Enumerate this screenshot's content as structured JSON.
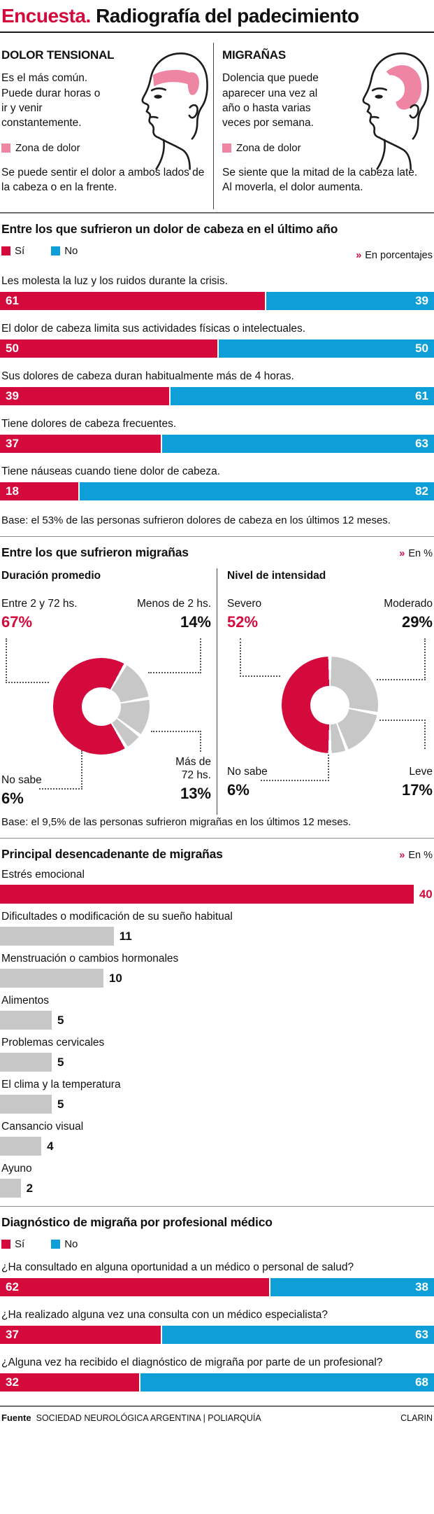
{
  "colors": {
    "red": "#d40a3c",
    "blue": "#0f9fd8",
    "pink": "#ee85a2",
    "gray": "#c7c7c7",
    "ink": "#111111"
  },
  "header": {
    "kicker": "Encuesta.",
    "title": "Radiografía del padecimiento"
  },
  "types": {
    "left": {
      "title": "DOLOR TENSIONAL",
      "desc": "Es el más común. Puede durar horas o ir y venir constantemente.",
      "zone_label": "Zona de dolor",
      "note": "Se puede sentir el dolor a ambos lados de la cabeza o en la frente."
    },
    "right": {
      "title": "MIGRAÑAS",
      "desc": "Dolencia que puede aparecer una vez al año o hasta varias veces por semana.",
      "zone_label": "Zona de dolor",
      "note": "Se siente que la mitad de la cabeza late. Al moverla, el dolor aumenta."
    }
  },
  "strings": {
    "unit_marker": "»"
  },
  "sections": {
    "headache": {
      "legend_yes": "Sí",
      "legend_no": "No",
      "unit_text": "En porcentajes",
      "base": "Base: el 53% de las personas sufrieron dolores de cabeza en los últimos 12 meses."
    },
    "migraine": {
      "title": "Entre los que sufrieron migrañas",
      "unit_text": "En %",
      "base": "Base: el 9,5% de las personas sufrieron migrañas en los últimos 12 meses."
    },
    "triggers": {
      "unit_text": "En %"
    },
    "diagnosis": {
      "legend_yes": "Sí",
      "legend_no": "No"
    }
  },
  "footer": {
    "source_label": "Fuente",
    "source": "SOCIEDAD NEUROLÓGICA ARGENTINA | POLIARQUÍA",
    "brand": "CLARIN"
  },
  "chart_data": [
    {
      "type": "bar",
      "subtype": "stacked_100_horizontal",
      "title": "Entre los que sufrieron un dolor de cabeza en el último año",
      "unit": "En porcentajes",
      "series": [
        "Sí",
        "No"
      ],
      "series_colors": [
        "#d40a3c",
        "#0f9fd8"
      ],
      "rows": [
        {
          "label": "Les molesta la luz y los ruidos durante la crisis.",
          "si": 61,
          "no": 39
        },
        {
          "label": "El dolor de cabeza limita sus actividades físicas o intelectuales.",
          "si": 50,
          "no": 50
        },
        {
          "label": "Sus dolores de cabeza duran habitualmente más de 4 horas.",
          "si": 39,
          "no": 61
        },
        {
          "label": "Tiene dolores de cabeza frecuentes.",
          "si": 37,
          "no": 63
        },
        {
          "label": "Tiene náuseas cuando tiene dolor de cabeza.",
          "si": 18,
          "no": 82
        }
      ]
    },
    {
      "type": "pie",
      "subtype": "donut",
      "title": "Duración promedio",
      "start_deg": 30,
      "segments": [
        {
          "label": "Menos de 2 hs.",
          "value": 14,
          "color": "gray",
          "pos": "tr"
        },
        {
          "label": "Más de 72 hs.",
          "value": 13,
          "color": "gray",
          "pos": "br"
        },
        {
          "label": "No sabe",
          "value": 6,
          "color": "gray",
          "pos": "bl"
        },
        {
          "label": "Entre 2 y 72 hs.",
          "value": 67,
          "color": "red",
          "pos": "tl",
          "emphasis": true
        }
      ]
    },
    {
      "type": "pie",
      "subtype": "donut",
      "title": "Nivel de intensidad",
      "start_deg": 0,
      "segments": [
        {
          "label": "Moderado",
          "value": 29,
          "color": "gray",
          "pos": "tr"
        },
        {
          "label": "Leve",
          "value": 17,
          "color": "gray",
          "pos": "br"
        },
        {
          "label": "No sabe",
          "value": 6,
          "color": "gray",
          "pos": "bl"
        },
        {
          "label": "Severo",
          "value": 52,
          "color": "red",
          "pos": "tl",
          "emphasis": true
        }
      ]
    },
    {
      "type": "bar",
      "subtype": "horizontal",
      "title": "Principal desencadenante de migrañas",
      "unit": "En %",
      "xlim": [
        0,
        40
      ],
      "rows": [
        {
          "label": "Estrés emocional",
          "value": 40,
          "color": "red"
        },
        {
          "label": "Dificultades o modificación de su sueño habitual",
          "value": 11,
          "color": "gray"
        },
        {
          "label": "Menstruación o cambios hormonales",
          "value": 10,
          "color": "gray"
        },
        {
          "label": "Alimentos",
          "value": 5,
          "color": "gray"
        },
        {
          "label": "Problemas cervicales",
          "value": 5,
          "color": "gray"
        },
        {
          "label": "El clima y la temperatura",
          "value": 5,
          "color": "gray"
        },
        {
          "label": "Cansancio visual",
          "value": 4,
          "color": "gray"
        },
        {
          "label": "Ayuno",
          "value": 2,
          "color": "gray"
        }
      ]
    },
    {
      "type": "bar",
      "subtype": "stacked_100_horizontal",
      "title": "Diagnóstico de migraña por profesional médico",
      "series": [
        "Sí",
        "No"
      ],
      "series_colors": [
        "#d40a3c",
        "#0f9fd8"
      ],
      "rows": [
        {
          "label": "¿Ha consultado en alguna oportunidad a un médico o personal de salud?",
          "si": 62,
          "no": 38
        },
        {
          "label": "¿Ha realizado alguna vez una consulta con un médico especialista?",
          "si": 37,
          "no": 63
        },
        {
          "label": "¿Alguna vez ha recibido el diagnóstico de migraña por parte de un profesional?",
          "si": 32,
          "no": 68
        }
      ]
    }
  ]
}
